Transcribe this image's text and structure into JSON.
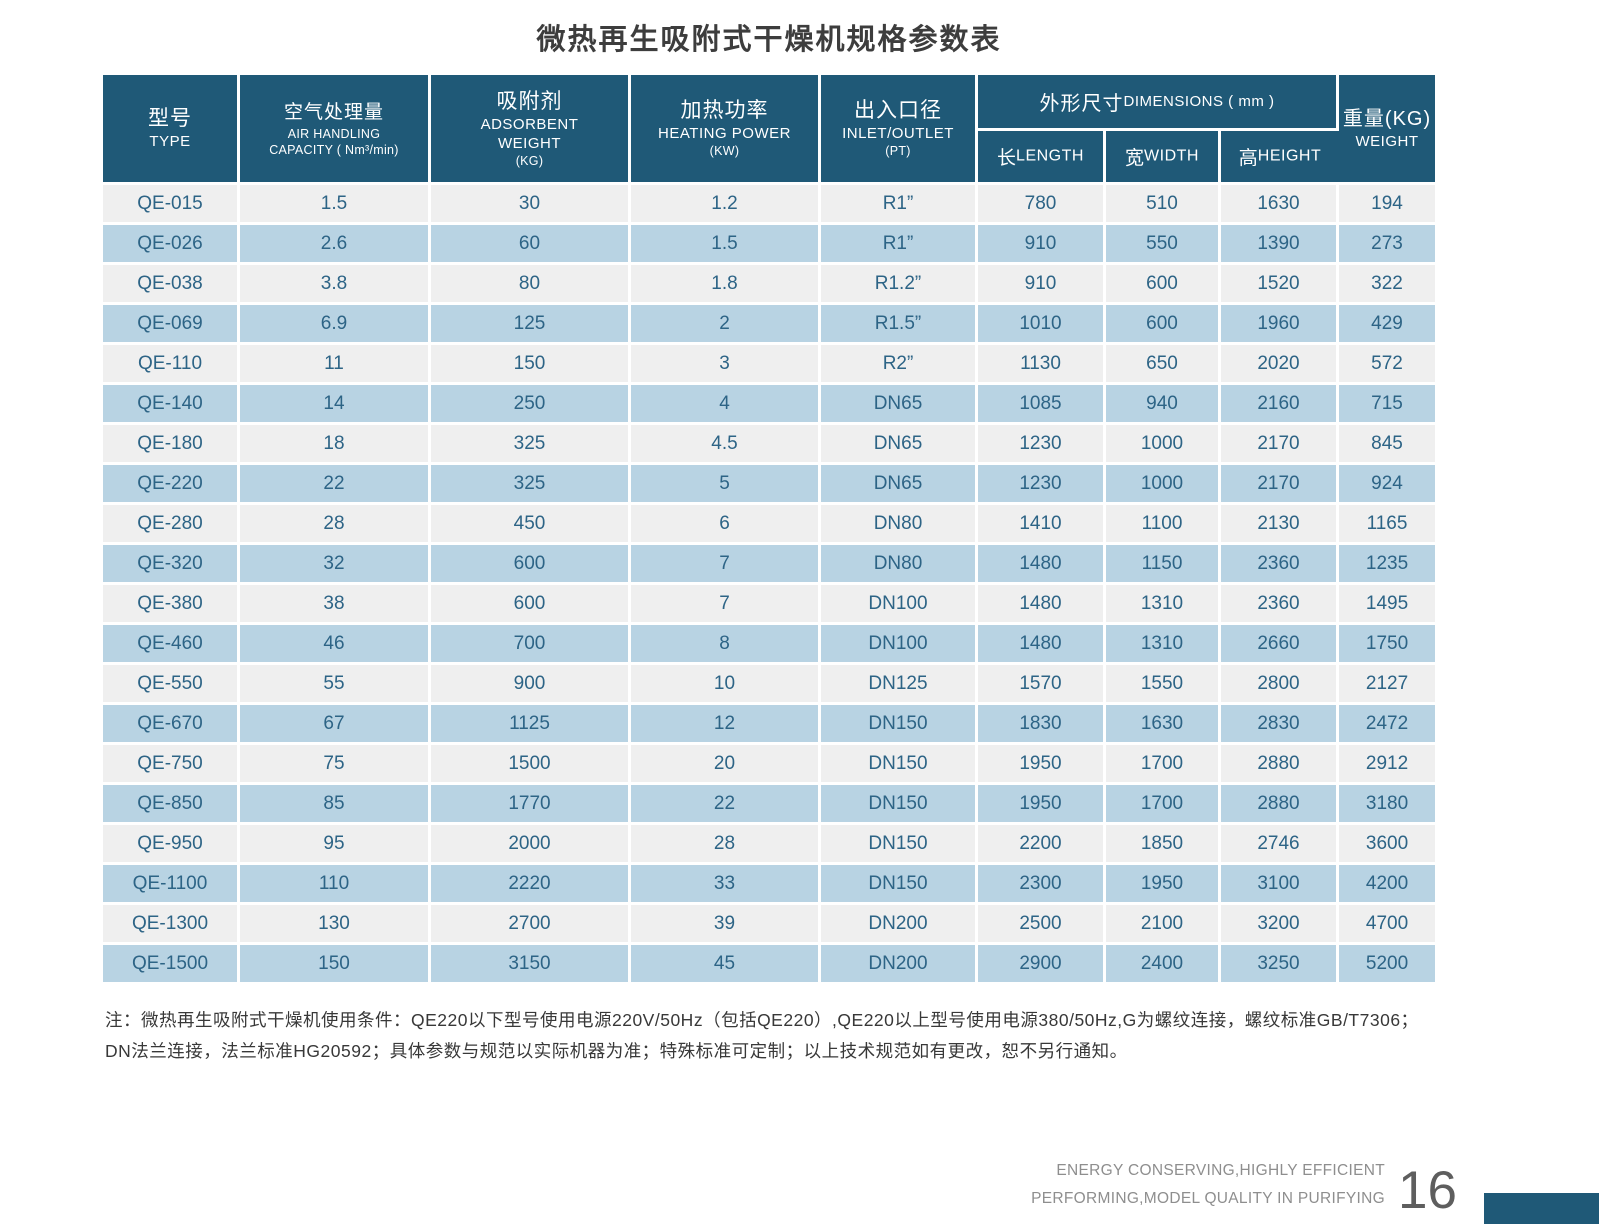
{
  "title": "微热再生吸附式干燥机规格参数表",
  "colors": {
    "header_bg": "#1f5977",
    "row_blue": "#b8d3e3",
    "row_gray": "#efefef",
    "cell_text": "#2d6486",
    "accent_bar": "#1f5977"
  },
  "table": {
    "headers": {
      "type_zh": "型号",
      "type_en": "TYPE",
      "capacity_zh": "空气处理量",
      "capacity_en1": "AIR HANDLING",
      "capacity_en2": "CAPACITY ( Nm³/min)",
      "adsorbent_zh": "吸附剂",
      "adsorbent_en1": "ADSORBENT",
      "adsorbent_en2": "WEIGHT",
      "adsorbent_en3": "(KG)",
      "heating_zh": "加热功率",
      "heating_en1": "HEATING POWER",
      "heating_en2": "(KW)",
      "inlet_zh": "出入口径",
      "inlet_en1": "INLET/OUTLET",
      "inlet_en2": "(PT)",
      "dimensions_zh": "外形尺寸",
      "dimensions_en": "DIMENSIONS ( mm )",
      "length_zh": "长",
      "length_en": "LENGTH",
      "width_zh": "宽",
      "width_en": "WIDTH",
      "height_zh": "高",
      "height_en": "HEIGHT",
      "weight_zh": "重量(KG)",
      "weight_en": "WEIGHT"
    },
    "rows": [
      [
        "QE-015",
        "1.5",
        "30",
        "1.2",
        "R1”",
        "780",
        "510",
        "1630",
        "194"
      ],
      [
        "QE-026",
        "2.6",
        "60",
        "1.5",
        "R1”",
        "910",
        "550",
        "1390",
        "273"
      ],
      [
        "QE-038",
        "3.8",
        "80",
        "1.8",
        "R1.2”",
        "910",
        "600",
        "1520",
        "322"
      ],
      [
        "QE-069",
        "6.9",
        "125",
        "2",
        "R1.5”",
        "1010",
        "600",
        "1960",
        "429"
      ],
      [
        "QE-110",
        "11",
        "150",
        "3",
        "R2”",
        "1130",
        "650",
        "2020",
        "572"
      ],
      [
        "QE-140",
        "14",
        "250",
        "4",
        "DN65",
        "1085",
        "940",
        "2160",
        "715"
      ],
      [
        "QE-180",
        "18",
        "325",
        "4.5",
        "DN65",
        "1230",
        "1000",
        "2170",
        "845"
      ],
      [
        "QE-220",
        "22",
        "325",
        "5",
        "DN65",
        "1230",
        "1000",
        "2170",
        "924"
      ],
      [
        "QE-280",
        "28",
        "450",
        "6",
        "DN80",
        "1410",
        "1100",
        "2130",
        "1165"
      ],
      [
        "QE-320",
        "32",
        "600",
        "7",
        "DN80",
        "1480",
        "1150",
        "2360",
        "1235"
      ],
      [
        "QE-380",
        "38",
        "600",
        "7",
        "DN100",
        "1480",
        "1310",
        "2360",
        "1495"
      ],
      [
        "QE-460",
        "46",
        "700",
        "8",
        "DN100",
        "1480",
        "1310",
        "2660",
        "1750"
      ],
      [
        "QE-550",
        "55",
        "900",
        "10",
        "DN125",
        "1570",
        "1550",
        "2800",
        "2127"
      ],
      [
        "QE-670",
        "67",
        "1125",
        "12",
        "DN150",
        "1830",
        "1630",
        "2830",
        "2472"
      ],
      [
        "QE-750",
        "75",
        "1500",
        "20",
        "DN150",
        "1950",
        "1700",
        "2880",
        "2912"
      ],
      [
        "QE-850",
        "85",
        "1770",
        "22",
        "DN150",
        "1950",
        "1700",
        "2880",
        "3180"
      ],
      [
        "QE-950",
        "95",
        "2000",
        "28",
        "DN150",
        "2200",
        "1850",
        "2746",
        "3600"
      ],
      [
        "QE-1100",
        "110",
        "2220",
        "33",
        "DN150",
        "2300",
        "1950",
        "3100",
        "4200"
      ],
      [
        "QE-1300",
        "130",
        "2700",
        "39",
        "DN200",
        "2500",
        "2100",
        "3200",
        "4700"
      ],
      [
        "QE-1500",
        "150",
        "3150",
        "45",
        "DN200",
        "2900",
        "2400",
        "3250",
        "5200"
      ]
    ]
  },
  "note": {
    "line1": "注：微热再生吸附式干燥机使用条件：QE220以下型号使用电源220V/50Hz（包括QE220）,QE220以上型号使用电源380/50Hz,G为螺纹连接，螺纹标准GB/T7306；",
    "line2": "DN法兰连接，法兰标准HG20592；具体参数与规范以实际机器为准；特殊标准可定制；以上技术规范如有更改，恕不另行通知。"
  },
  "footer": {
    "slogan_line1": "ENERGY CONSERVING,HIGHLY EFFICIENT",
    "slogan_line2": "PERFORMING,MODEL QUALITY IN PURIFYING",
    "page_number": "16"
  }
}
